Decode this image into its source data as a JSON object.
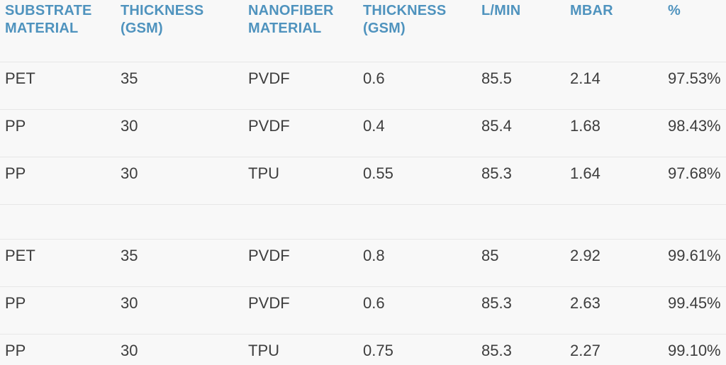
{
  "colors": {
    "background": "#f8f8f8",
    "header_text": "#4f93be",
    "body_text": "#3d3d3d",
    "row_border": "#e7e7e7"
  },
  "table": {
    "headers": [
      "SUBSTRATE MATERIAL",
      "THICKNESS (GSM)",
      "NANOFIBER MATERIAL",
      "THICKNESS (GSM)",
      "L/MIN",
      "MBAR",
      "%"
    ],
    "groups": [
      {
        "rows": [
          [
            "PET",
            "35",
            "PVDF",
            "0.6",
            "85.5",
            "2.14",
            "97.53%"
          ],
          [
            "PP",
            "30",
            "PVDF",
            "0.4",
            "85.4",
            "1.68",
            "98.43%"
          ],
          [
            "PP",
            "30",
            "TPU",
            "0.55",
            "85.3",
            "1.64",
            "97.68%"
          ]
        ]
      },
      {
        "rows": [
          [
            "PET",
            "35",
            "PVDF",
            "0.8",
            "85",
            "2.92",
            "99.61%"
          ],
          [
            "PP",
            "30",
            "PVDF",
            "0.6",
            "85.3",
            "2.63",
            "99.45%"
          ],
          [
            "PP",
            "30",
            "TPU",
            "0.75",
            "85.3",
            "2.27",
            "99.10%"
          ]
        ]
      }
    ]
  },
  "chart_data": {
    "type": "table",
    "title": "",
    "columns": [
      "SUBSTRATE MATERIAL",
      "THICKNESS (GSM)",
      "NANOFIBER MATERIAL",
      "THICKNESS (GSM)",
      "L/MIN",
      "MBAR",
      "%"
    ],
    "rows": [
      {
        "substrate_material": "PET",
        "substrate_thickness_gsm": 35,
        "nanofiber_material": "PVDF",
        "nanofiber_thickness_gsm": 0.6,
        "l_min": 85.5,
        "mbar": 2.14,
        "efficiency_pct": 97.53
      },
      {
        "substrate_material": "PP",
        "substrate_thickness_gsm": 30,
        "nanofiber_material": "PVDF",
        "nanofiber_thickness_gsm": 0.4,
        "l_min": 85.4,
        "mbar": 1.68,
        "efficiency_pct": 98.43
      },
      {
        "substrate_material": "PP",
        "substrate_thickness_gsm": 30,
        "nanofiber_material": "TPU",
        "nanofiber_thickness_gsm": 0.55,
        "l_min": 85.3,
        "mbar": 1.64,
        "efficiency_pct": 97.68
      },
      {
        "substrate_material": "PET",
        "substrate_thickness_gsm": 35,
        "nanofiber_material": "PVDF",
        "nanofiber_thickness_gsm": 0.8,
        "l_min": 85,
        "mbar": 2.92,
        "efficiency_pct": 99.61
      },
      {
        "substrate_material": "PP",
        "substrate_thickness_gsm": 30,
        "nanofiber_material": "PVDF",
        "nanofiber_thickness_gsm": 0.6,
        "l_min": 85.3,
        "mbar": 2.63,
        "efficiency_pct": 99.45
      },
      {
        "substrate_material": "PP",
        "substrate_thickness_gsm": 30,
        "nanofiber_material": "TPU",
        "nanofiber_thickness_gsm": 0.75,
        "l_min": 85.3,
        "mbar": 2.27,
        "efficiency_pct": 99.1
      }
    ],
    "group_break_after_row_index": 2
  }
}
